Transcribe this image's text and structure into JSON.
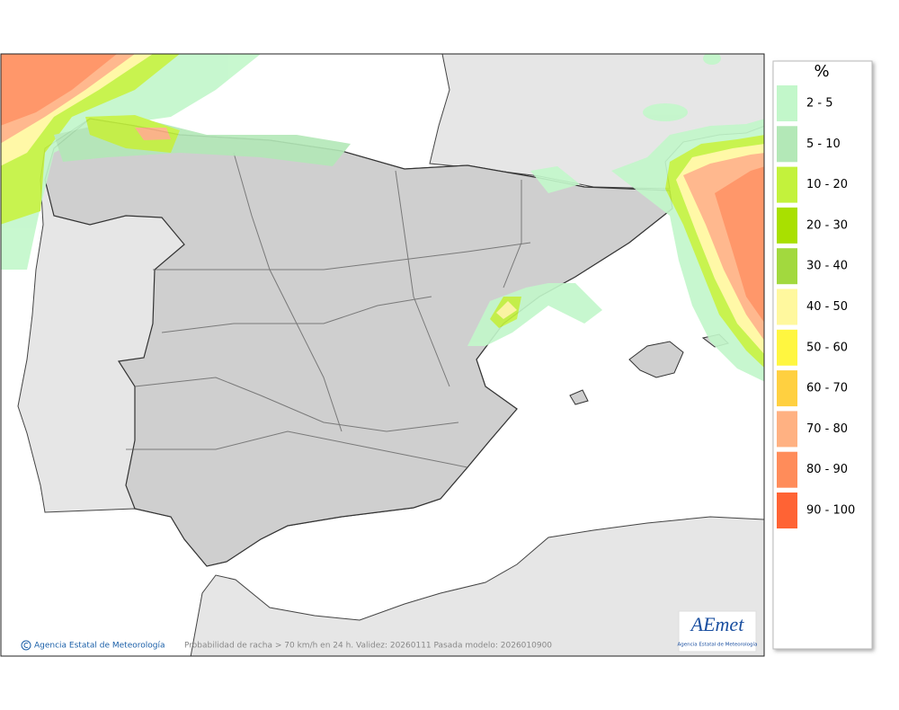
{
  "map": {
    "caption": "Probabilidad de racha > 70 km/h en 24 h. Validez: 20260111 Pasada modelo: 2026010900",
    "credit": "Agencia Estatal de Meteorología",
    "logo": {
      "name": "AEmet",
      "subtitle": "Agencia Estatal de Meteorología"
    }
  },
  "legend": {
    "title": "%",
    "items": [
      {
        "label": "2 - 5",
        "color": "#c2f7ca"
      },
      {
        "label": "5 - 10",
        "color": "#b3e8b7"
      },
      {
        "label": "10 - 20",
        "color": "#c3f23c"
      },
      {
        "label": "20 - 30",
        "color": "#a9e000"
      },
      {
        "label": "30 - 40",
        "color": "#a2d93e"
      },
      {
        "label": "40 - 50",
        "color": "#fff89e"
      },
      {
        "label": "50 - 60",
        "color": "#fff640"
      },
      {
        "label": "60 - 70",
        "color": "#ffd040"
      },
      {
        "label": "70 - 80",
        "color": "#ffb182"
      },
      {
        "label": "80 - 90",
        "color": "#ff8c5a"
      },
      {
        "label": "90 - 100",
        "color": "#ff6334"
      }
    ]
  }
}
